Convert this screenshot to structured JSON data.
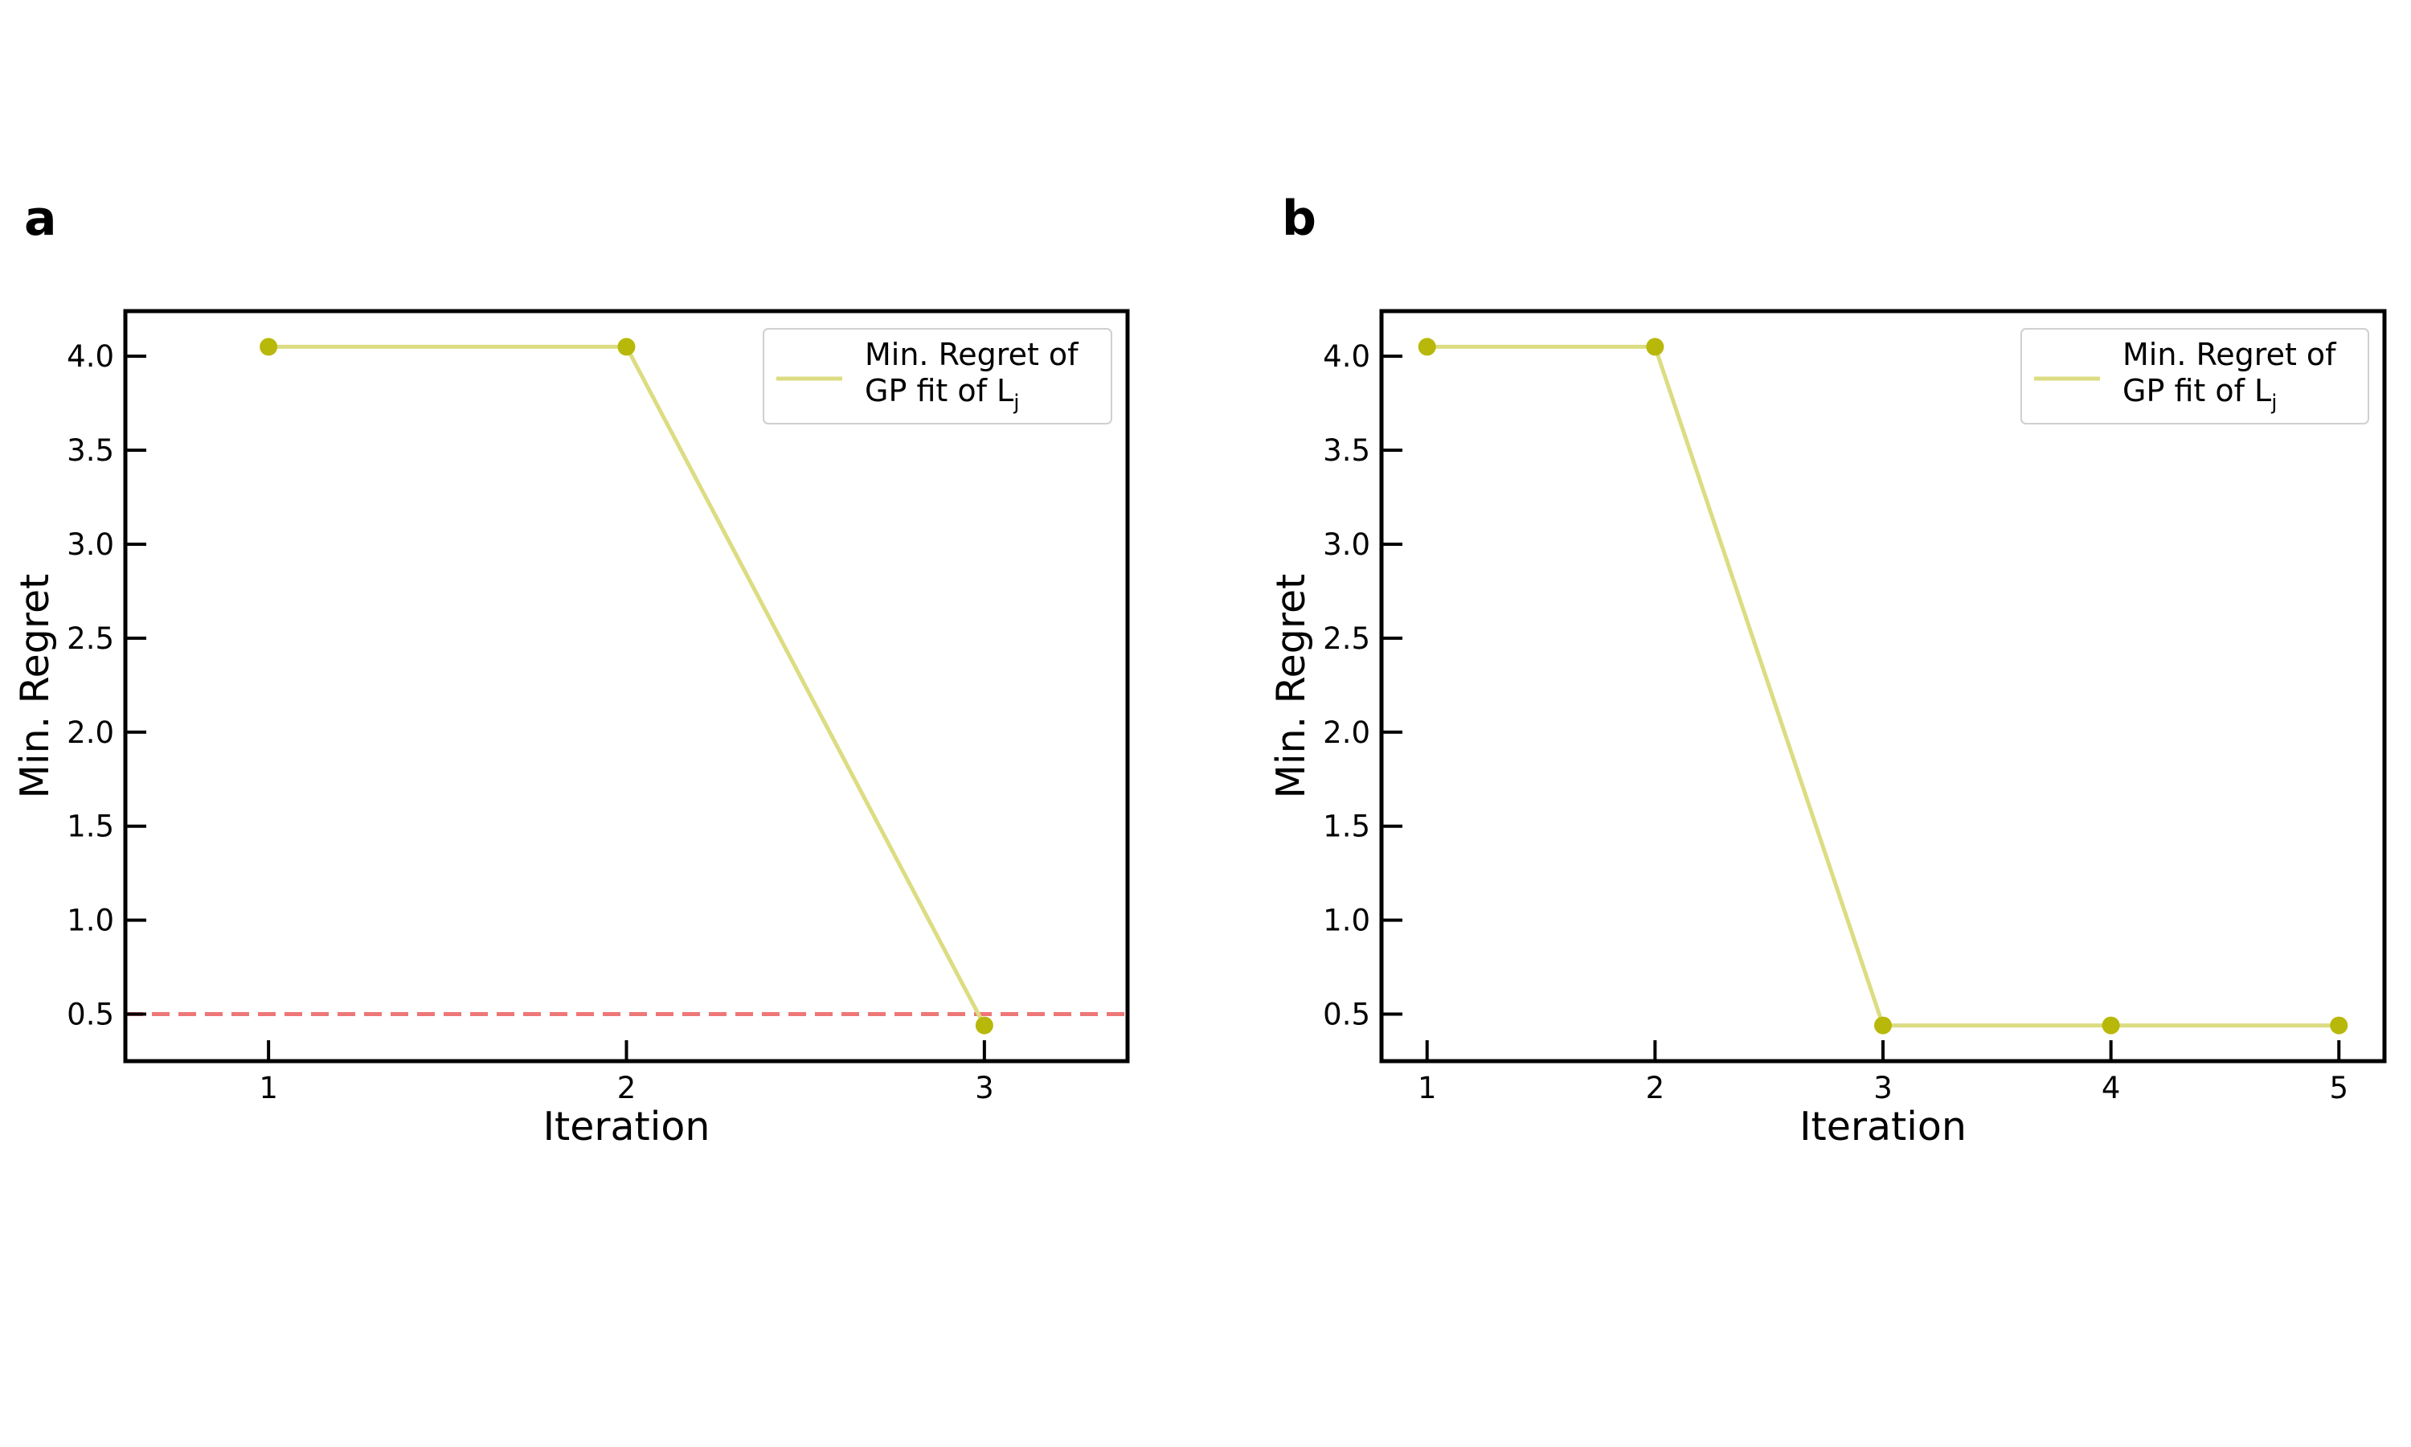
{
  "chart_data": [
    {
      "panel_label": "a",
      "type": "line",
      "xlabel": "Iteration",
      "ylabel": "Min. Regret",
      "x": [
        1,
        2,
        3
      ],
      "xticks": [
        "1",
        "2",
        "3"
      ],
      "yticks": [
        "0.5",
        "1.0",
        "1.5",
        "2.0",
        "2.5",
        "3.0",
        "3.5",
        "4.0"
      ],
      "xlim": [
        0.6,
        3.4
      ],
      "ylim": [
        0.25,
        4.24
      ],
      "series": [
        {
          "name": "Min. Regret of GP fit of L_j",
          "values": [
            4.05,
            4.05,
            0.44
          ],
          "line_color": "#dcdc82",
          "marker_color": "#b8b80a"
        }
      ],
      "reference_line": {
        "y": 0.5,
        "style": "dashed",
        "color": "#ee7777"
      },
      "legend": {
        "line1": "Min. Regret of",
        "line2": "GP fit of L",
        "subscript": "j",
        "position": "upper right"
      },
      "grid": false
    },
    {
      "panel_label": "b",
      "type": "line",
      "xlabel": "Iteration",
      "ylabel": "Min. Regret",
      "x": [
        1,
        2,
        3,
        4,
        5
      ],
      "xticks": [
        "1",
        "2",
        "3",
        "4",
        "5"
      ],
      "yticks": [
        "0.5",
        "1.0",
        "1.5",
        "2.0",
        "2.5",
        "3.0",
        "3.5",
        "4.0"
      ],
      "xlim": [
        0.8,
        5.2
      ],
      "ylim": [
        0.25,
        4.24
      ],
      "series": [
        {
          "name": "Min. Regret of GP fit of L_j",
          "values": [
            4.05,
            4.05,
            0.44,
            0.44,
            0.44
          ],
          "line_color": "#dcdc82",
          "marker_color": "#b8b80a"
        }
      ],
      "legend": {
        "line1": "Min. Regret of",
        "line2": "GP fit of L",
        "subscript": "j",
        "position": "upper right"
      },
      "grid": false
    }
  ]
}
